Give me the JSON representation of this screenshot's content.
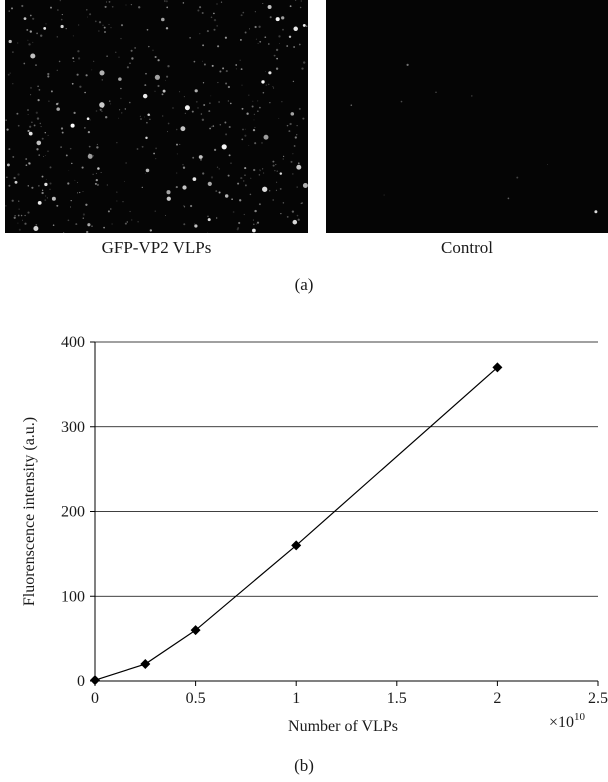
{
  "figure": {
    "panel_a": {
      "images": [
        {
          "caption": "GFP-VP2 VLPs"
        },
        {
          "caption": "Control"
        }
      ],
      "label": "(a)"
    },
    "panel_b": {
      "label": "(b)"
    }
  },
  "chart_data": {
    "type": "scatter",
    "title": "",
    "xlabel": "Number of VLPs",
    "ylabel": "Fluorenscence intensity (a.u.)",
    "x_multiplier_label": "×10",
    "x_multiplier_exponent": "10",
    "xlim": [
      0,
      2.5
    ],
    "ylim": [
      0,
      400
    ],
    "x_ticks": [
      "0",
      "0.5",
      "1",
      "1.5",
      "2",
      "2.5"
    ],
    "y_ticks": [
      "0",
      "100",
      "200",
      "300",
      "400"
    ],
    "grid": "horizontal",
    "legend": "none",
    "marker": "diamond",
    "line": "straight",
    "series": [
      {
        "x": [
          0,
          0.25,
          0.5,
          1,
          2
        ],
        "y": [
          1,
          20,
          60,
          160,
          370
        ]
      }
    ],
    "colors": {
      "line": "#000000",
      "grid": "#000000"
    }
  }
}
